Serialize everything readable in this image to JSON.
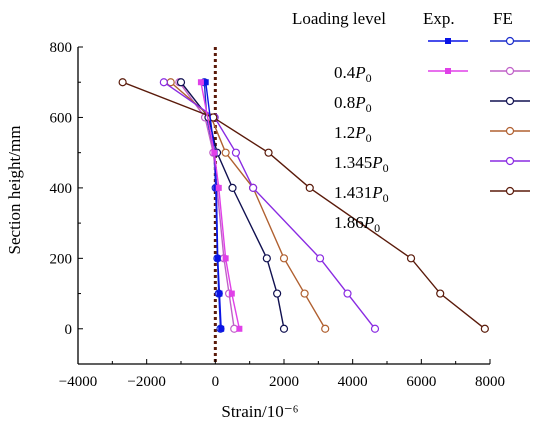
{
  "chart_data": {
    "type": "line",
    "xlabel": "Strain/10⁻⁶",
    "ylabel": "Section height/mm",
    "xlim": [
      -4000,
      8000
    ],
    "ylim": [
      -100,
      800
    ],
    "x_ticks": [
      -4000,
      -2000,
      0,
      2000,
      4000,
      6000,
      8000
    ],
    "x_tick_labels": [
      "−4000",
      "−2000",
      "0",
      "2000",
      "4000",
      "6000",
      "8000"
    ],
    "y_ticks": [
      0,
      200,
      400,
      600,
      800
    ],
    "y_tick_labels": [
      "0",
      "200",
      "400",
      "600",
      "800"
    ],
    "grid": false,
    "legend": {
      "placement": "top-right",
      "header_level": "Loading level",
      "header_exp": "Exp.",
      "header_fe": "FE",
      "entries": [
        {
          "base": "0.4",
          "sym": "P",
          "sub": "0"
        },
        {
          "base": "0.8",
          "sym": "P",
          "sub": "0"
        },
        {
          "base": "1.2",
          "sym": "P",
          "sub": "0"
        },
        {
          "base": "1.345",
          "sym": "P",
          "sub": "0"
        },
        {
          "base": "1.431",
          "sym": "P",
          "sub": "0"
        },
        {
          "base": "1.86",
          "sym": "P",
          "sub": "0"
        }
      ]
    },
    "reference_line": {
      "x": 0,
      "color": "#5a1a0a",
      "style": "dotted"
    },
    "experimental": [
      {
        "color": "#0a14e6",
        "x": [
          170,
          120,
          70,
          30,
          -20,
          -280
        ],
        "y": [
          0,
          100,
          200,
          400,
          500,
          700
        ]
      },
      {
        "color": "#e040e8",
        "x": [
          700,
          480,
          300,
          100,
          -30,
          -420
        ],
        "y": [
          0,
          100,
          200,
          400,
          500,
          700
        ]
      }
    ],
    "fe": [
      {
        "color": "#1a2ccc",
        "x": [
          150,
          100,
          60,
          10,
          -40,
          -250,
          -320
        ],
        "y": [
          0,
          100,
          200,
          400,
          500,
          600,
          700
        ]
      },
      {
        "color": "#c060c8",
        "x": [
          550,
          400,
          250,
          50,
          -60,
          -300,
          -1050
        ],
        "y": [
          0,
          100,
          200,
          400,
          500,
          600,
          700
        ]
      },
      {
        "color": "#101050",
        "x": [
          2000,
          1800,
          1500,
          500,
          50,
          -200,
          -1000
        ],
        "y": [
          0,
          100,
          200,
          400,
          500,
          600,
          700
        ]
      },
      {
        "color": "#b06030",
        "x": [
          3200,
          2600,
          2000,
          1100,
          300,
          -120,
          -1300
        ],
        "y": [
          0,
          100,
          200,
          400,
          500,
          600,
          700
        ]
      },
      {
        "color": "#8a2be2",
        "x": [
          4650,
          3850,
          3050,
          1100,
          600,
          -20,
          -1500
        ],
        "y": [
          0,
          100,
          200,
          400,
          500,
          600,
          700
        ]
      },
      {
        "color": "#5a1a0a",
        "x": [
          7850,
          6550,
          5700,
          2750,
          1550,
          -60,
          -2700
        ],
        "y": [
          0,
          100,
          200,
          400,
          500,
          600,
          700
        ]
      }
    ]
  }
}
